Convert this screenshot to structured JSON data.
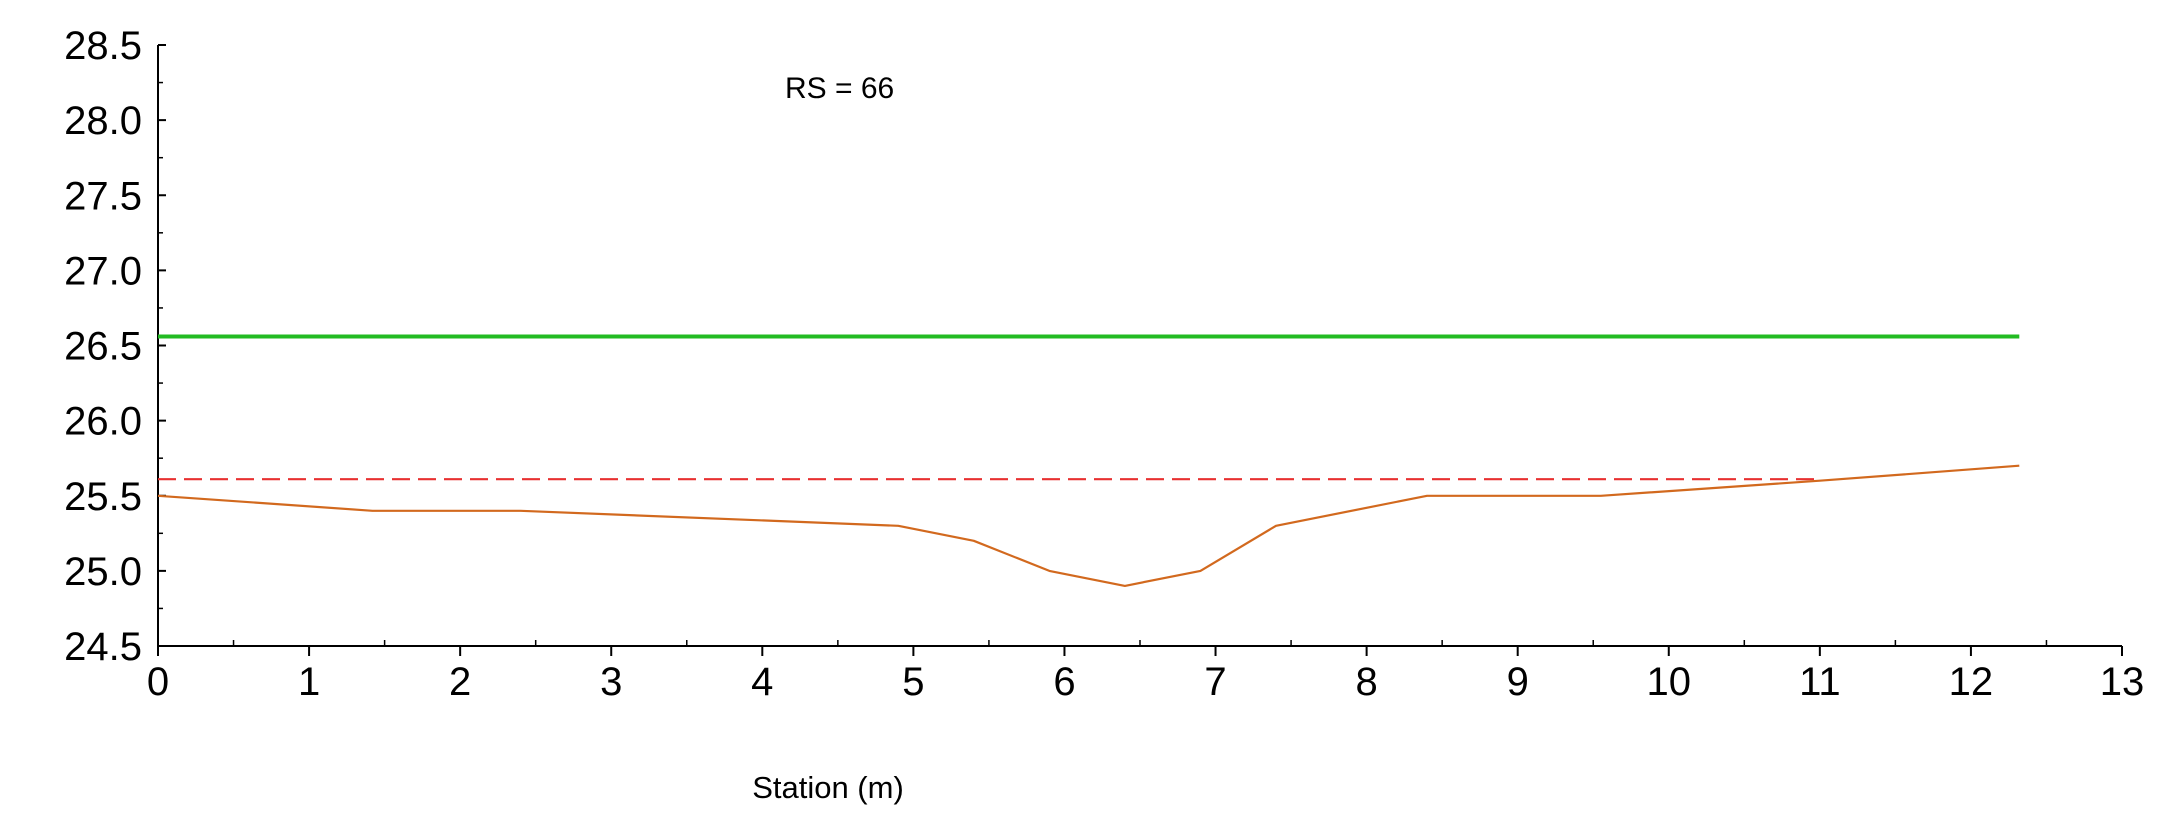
{
  "chart_data": {
    "type": "line",
    "title": "",
    "annotation": "RS = 66",
    "xlabel": "Station (m)",
    "ylabel": "",
    "xlim": [
      0,
      13
    ],
    "ylim": [
      24.5,
      28.5
    ],
    "x_ticks": [
      0,
      1,
      2,
      3,
      4,
      5,
      6,
      7,
      8,
      9,
      10,
      11,
      12,
      13
    ],
    "x_tick_labels": [
      "0",
      "1",
      "2",
      "3",
      "4",
      "5",
      "6",
      "7",
      "8",
      "9",
      "10",
      "11",
      "12",
      "13"
    ],
    "y_ticks": [
      24.5,
      25.0,
      25.5,
      26.0,
      26.5,
      27.0,
      27.5,
      28.0,
      28.5
    ],
    "y_tick_labels": [
      "24.5",
      "25.0",
      "25.5",
      "26.0",
      "26.5",
      "27.0",
      "27.5",
      "28.0",
      "28.5"
    ],
    "grid": false,
    "series": [
      {
        "key": "water-surface",
        "color": "#22bb22",
        "style": "solid",
        "x": [
          0,
          12.32
        ],
        "y": [
          26.56,
          26.56
        ]
      },
      {
        "key": "critical-depth",
        "color": "#e83030",
        "style": "dashed",
        "x": [
          0,
          11.0
        ],
        "y": [
          25.61,
          25.61
        ]
      },
      {
        "key": "ground-profile",
        "color": "#d2691e",
        "style": "solid",
        "x": [
          0,
          1.42,
          2.4,
          4.9,
          5.4,
          5.9,
          6.4,
          6.9,
          7.4,
          8.4,
          9.55,
          11.0,
          12.32
        ],
        "y": [
          25.5,
          25.4,
          25.4,
          25.3,
          25.2,
          25.0,
          24.9,
          25.0,
          25.3,
          25.5,
          25.5,
          25.6,
          25.7
        ]
      }
    ]
  }
}
